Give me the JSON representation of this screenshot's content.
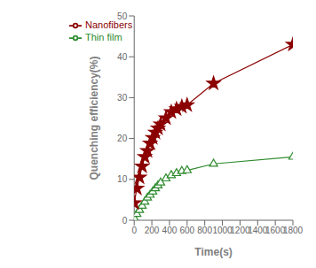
{
  "chart_data": {
    "type": "line",
    "x": [
      0,
      30,
      60,
      90,
      120,
      150,
      180,
      210,
      240,
      270,
      300,
      360,
      420,
      480,
      540,
      600,
      900,
      1800
    ],
    "series": [
      {
        "name": "Thin film",
        "color": "#2e8b2e",
        "marker": "triangle",
        "values": [
          0.5,
          1.5,
          2.5,
          3.5,
          4.5,
          5.5,
          6.2,
          7.0,
          7.8,
          8.5,
          9.2,
          10.2,
          11.0,
          11.5,
          12.0,
          12.2,
          13.8,
          15.5
        ]
      },
      {
        "name": "Nanofibers",
        "color": "#8B0000",
        "marker": "star",
        "values": [
          4.2,
          7.8,
          10.5,
          13.2,
          15.5,
          17.0,
          18.8,
          20.2,
          21.5,
          22.5,
          23.5,
          25.0,
          26.5,
          27.2,
          27.8,
          28.2,
          33.5,
          43.0
        ]
      }
    ],
    "xlabel": "Time(s)",
    "ylabel": "Quenching efficiency(%)",
    "xlim": [
      0,
      1800
    ],
    "ylim": [
      0,
      50
    ],
    "xticks": [
      0,
      200,
      400,
      600,
      800,
      1000,
      1200,
      1400,
      1600,
      1800
    ],
    "yticks": [
      0,
      10,
      20,
      30,
      40,
      50
    ],
    "legend": "upper left",
    "grid": false
  }
}
